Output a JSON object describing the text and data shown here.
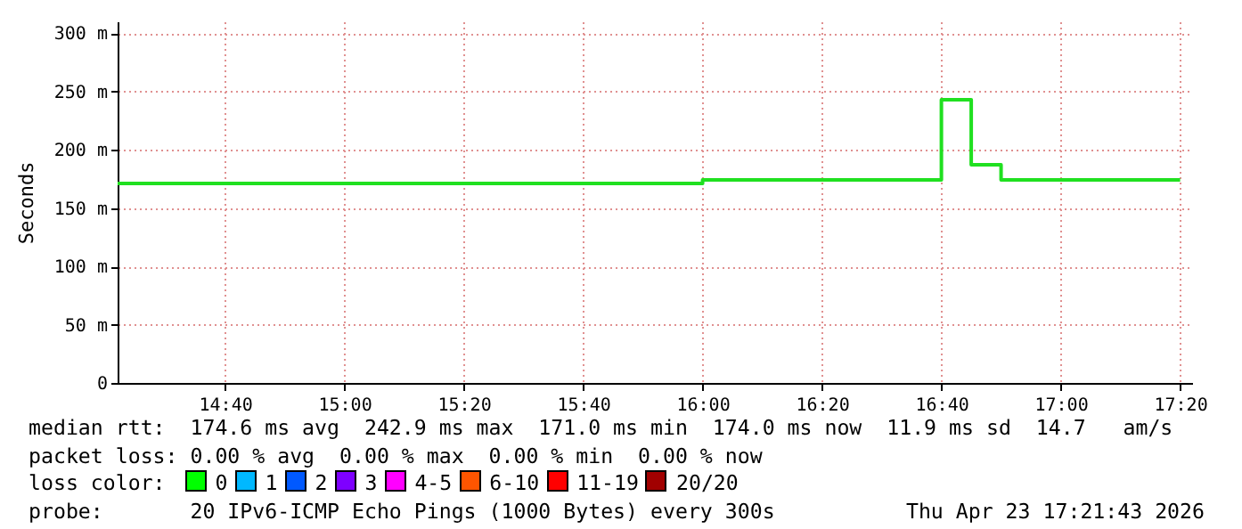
{
  "chart_data": {
    "type": "step",
    "ylabel": "Seconds",
    "x": [
      14.3667,
      16.0,
      16.6667,
      16.75,
      16.8333,
      17.3333
    ],
    "series": [
      {
        "color": "#20e020",
        "values": [
          171.0,
          174.0,
          242.9,
          187,
          174.0,
          174.0
        ]
      }
    ],
    "xlim": [
      14.3667,
      17.3667
    ],
    "xticks": [
      {
        "value": 14.6667,
        "label": "14:40"
      },
      {
        "value": 15.0,
        "label": "15:00"
      },
      {
        "value": 15.3333,
        "label": "15:20"
      },
      {
        "value": 15.6667,
        "label": "15:40"
      },
      {
        "value": 16.0,
        "label": "16:00"
      },
      {
        "value": 16.3333,
        "label": "16:20"
      },
      {
        "value": 16.6667,
        "label": "16:40"
      },
      {
        "value": 17.0,
        "label": "17:00"
      },
      {
        "value": 17.3333,
        "label": "17:20"
      }
    ],
    "ylim": [
      0,
      310
    ],
    "yticks": [
      0,
      {
        "value": 50,
        "label": "50 m"
      },
      {
        "value": 100,
        "label": "100 m"
      },
      {
        "value": 150,
        "label": "150 m"
      },
      {
        "value": 200,
        "label": "200 m"
      },
      {
        "value": 250,
        "label": "250 m"
      },
      {
        "value": 300,
        "label": "300 m"
      }
    ],
    "grid": true,
    "annotations": [
      "median rtt:  174.6 ms avg  242.9 ms max  171.0 ms min  174.0 ms now  11.9 ms sd  14.7   am/s",
      "packet loss: 0.00 % avg  0.00 % max  0.00 % min  0.00 % now",
      "loss color:  0  1  2  3  4-5  6-10  11-19  20/20",
      "probe:       20 IPv6-ICMP Echo Pings (1000 Bytes) every 300s",
      "Thu Apr 23 17:21:43 2026"
    ]
  }
}
